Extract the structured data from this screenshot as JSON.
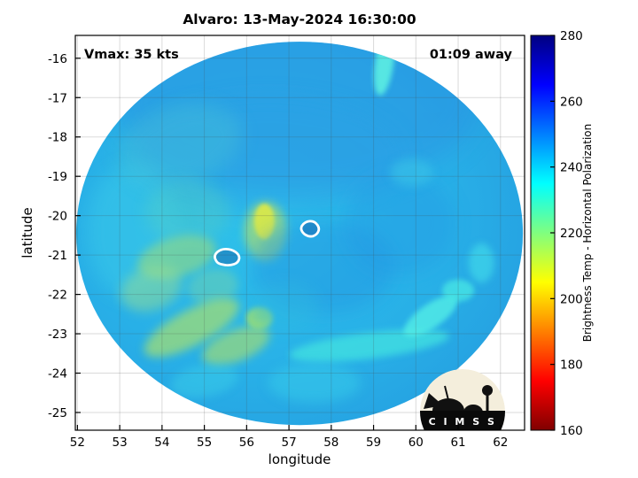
{
  "title": "Alvaro: 13-May-2024 16:30:00",
  "overlay": {
    "vmax": "Vmax: 35 kts",
    "time_away": "01:09 away"
  },
  "axes": {
    "x_label": "longitude",
    "y_label": "latitude",
    "x_ticks": [
      52,
      53,
      54,
      55,
      56,
      57,
      58,
      59,
      60,
      61,
      62
    ],
    "y_ticks": [
      -16,
      -17,
      -18,
      -19,
      -20,
      -21,
      -22,
      -23,
      -24,
      -25
    ]
  },
  "colorbar": {
    "label": "Brightness Temp - Horizontal Polarization",
    "label_color": "#22338a",
    "ticks": [
      160,
      180,
      200,
      220,
      240,
      260,
      280
    ],
    "min": 160,
    "max": 280,
    "colormap": "jet (reversed: low temp = red, high temp = blue)"
  },
  "logo": {
    "name": "CIMSS",
    "letters": "C I M S S"
  },
  "chart_data": {
    "type": "heatmap",
    "title": "Alvaro: 13-May-2024 16:30:00",
    "xlabel": "longitude",
    "ylabel": "latitude",
    "value_label": "Brightness Temp - Horizontal Polarization",
    "value_range": [
      160,
      280
    ],
    "x_range": [
      51.95,
      62.57
    ],
    "y_range": [
      -25.45,
      -15.42
    ],
    "grid": true,
    "swath": {
      "center_lon": 57.25,
      "center_lat": -20.45,
      "rx_deg": 5.28,
      "ry_deg": 4.87,
      "background_temp_K": 250
    },
    "blobs": [
      {
        "lon": 57.2,
        "lat": -17.1,
        "rx": 4.3,
        "ry": 2.3,
        "rot": 0,
        "color": "#2a92e2",
        "opacity": 0.5,
        "blur": 14,
        "temp": 256
      },
      {
        "lon": 56.5,
        "lat": -18.5,
        "rx": 3.2,
        "ry": 1.5,
        "rot": 0,
        "color": "#2aa0e6",
        "opacity": 0.4,
        "blur": 12,
        "temp": 253
      },
      {
        "lon": 53.3,
        "lat": -20.4,
        "rx": 1.1,
        "ry": 1.7,
        "rot": 0,
        "color": "#3ecde9",
        "opacity": 0.45,
        "blur": 10,
        "temp": 245
      },
      {
        "lon": 54.4,
        "lat": -18.2,
        "rx": 1.5,
        "ry": 1.0,
        "rot": -15,
        "color": "#4fc9d5",
        "opacity": 0.35,
        "blur": 10,
        "temp": 240
      },
      {
        "lon": 54.6,
        "lat": -19.9,
        "rx": 1.0,
        "ry": 0.8,
        "rot": 0,
        "color": "#57cfc4",
        "opacity": 0.4,
        "blur": 8,
        "temp": 238
      },
      {
        "lon": 59.25,
        "lat": -16.15,
        "rx": 0.22,
        "ry": 0.8,
        "rot": 8,
        "color": "#5ceee2",
        "opacity": 0.9,
        "blur": 3,
        "temp": 236
      },
      {
        "lon": 56.42,
        "lat": -20.15,
        "rx": 0.24,
        "ry": 0.45,
        "rot": 0,
        "color": "#f0ee3e",
        "opacity": 0.95,
        "blur": 2,
        "temp": 207
      },
      {
        "lon": 56.45,
        "lat": -20.4,
        "rx": 0.5,
        "ry": 0.75,
        "rot": 0,
        "color": "#c6e357",
        "opacity": 0.6,
        "blur": 5,
        "temp": 220
      },
      {
        "lon": 54.35,
        "lat": -21.05,
        "rx": 0.95,
        "ry": 0.5,
        "rot": -15,
        "color": "#8fd987",
        "opacity": 0.65,
        "blur": 5,
        "temp": 228
      },
      {
        "lon": 53.75,
        "lat": -21.85,
        "rx": 0.75,
        "ry": 0.55,
        "rot": -20,
        "color": "#97dd92",
        "opacity": 0.5,
        "blur": 6,
        "temp": 230
      },
      {
        "lon": 55.2,
        "lat": -21.8,
        "rx": 0.6,
        "ry": 0.45,
        "rot": -10,
        "color": "#7ad6a6",
        "opacity": 0.45,
        "blur": 5,
        "temp": 233
      },
      {
        "lon": 54.7,
        "lat": -22.85,
        "rx": 1.25,
        "ry": 0.45,
        "rot": -28,
        "color": "#a8df6e",
        "opacity": 0.7,
        "blur": 5,
        "temp": 224
      },
      {
        "lon": 55.75,
        "lat": -23.3,
        "rx": 0.85,
        "ry": 0.4,
        "rot": -22,
        "color": "#b2e165",
        "opacity": 0.6,
        "blur": 5,
        "temp": 222
      },
      {
        "lon": 56.3,
        "lat": -22.6,
        "rx": 0.32,
        "ry": 0.28,
        "rot": 0,
        "color": "#9fe06f",
        "opacity": 0.85,
        "blur": 3,
        "temp": 225
      },
      {
        "lon": 58.9,
        "lat": -23.3,
        "rx": 1.9,
        "ry": 0.33,
        "rot": -7,
        "color": "#44e6e0",
        "opacity": 0.7,
        "blur": 4,
        "temp": 236
      },
      {
        "lon": 60.35,
        "lat": -22.55,
        "rx": 0.75,
        "ry": 0.3,
        "rot": -35,
        "color": "#52eee6",
        "opacity": 0.8,
        "blur": 3,
        "temp": 237
      },
      {
        "lon": 61.0,
        "lat": -21.9,
        "rx": 0.38,
        "ry": 0.28,
        "rot": 0,
        "color": "#4ae8e4",
        "opacity": 0.75,
        "blur": 3,
        "temp": 237
      },
      {
        "lon": 61.55,
        "lat": -21.2,
        "rx": 0.3,
        "ry": 0.5,
        "rot": 0,
        "color": "#45e0ea",
        "opacity": 0.6,
        "blur": 4,
        "temp": 240
      },
      {
        "lon": 57.6,
        "lat": -24.25,
        "rx": 1.1,
        "ry": 0.5,
        "rot": 0,
        "color": "#38cce9",
        "opacity": 0.5,
        "blur": 6,
        "temp": 244
      },
      {
        "lon": 55.0,
        "lat": -24.2,
        "rx": 0.8,
        "ry": 0.4,
        "rot": -10,
        "color": "#3ed2e8",
        "opacity": 0.45,
        "blur": 5,
        "temp": 243
      },
      {
        "lon": 57.8,
        "lat": -21.3,
        "rx": 1.7,
        "ry": 1.2,
        "rot": 0,
        "color": "#2093e2",
        "opacity": 0.45,
        "blur": 10,
        "temp": 255
      },
      {
        "lon": 59.6,
        "lat": -20.2,
        "rx": 1.3,
        "ry": 1.3,
        "rot": 0,
        "color": "#2397e4",
        "opacity": 0.4,
        "blur": 10,
        "temp": 254
      },
      {
        "lon": 56.9,
        "lat": -22.3,
        "rx": 0.8,
        "ry": 0.6,
        "rot": 0,
        "color": "#2fb9e0",
        "opacity": 0.4,
        "blur": 8,
        "temp": 248
      },
      {
        "lon": 59.9,
        "lat": -18.9,
        "rx": 0.5,
        "ry": 0.35,
        "rot": 0,
        "color": "#3ccae8",
        "opacity": 0.5,
        "blur": 5,
        "temp": 245
      }
    ],
    "contours": [
      {
        "lon": 55.55,
        "lat": -21.05,
        "note": "white center-fix contour"
      },
      {
        "lon": 57.5,
        "lat": -20.32,
        "note": "white center-fix contour"
      }
    ]
  }
}
